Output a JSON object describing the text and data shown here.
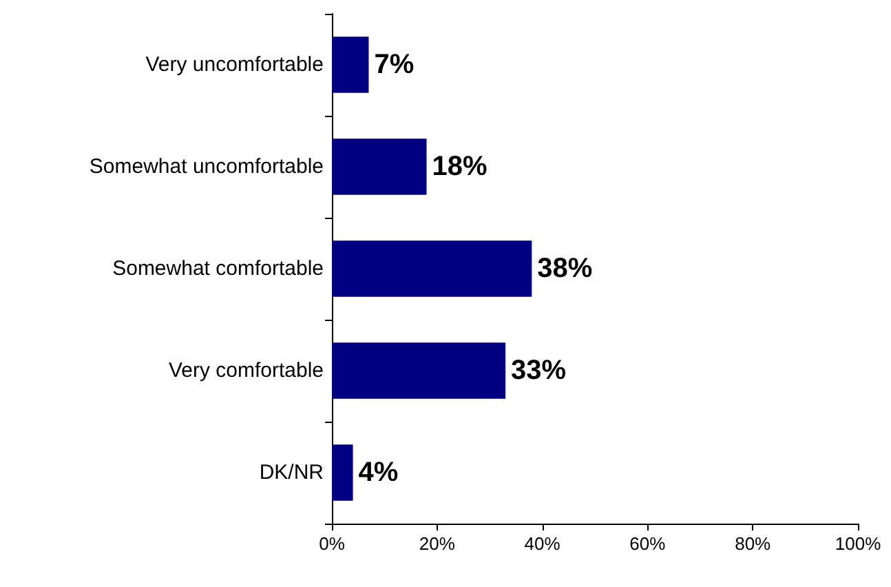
{
  "chart_data": {
    "type": "bar",
    "orientation": "horizontal",
    "categories": [
      "Very uncomfortable",
      "Somewhat uncomfortable",
      "Somewhat comfortable",
      "Very comfortable",
      "DK/NR"
    ],
    "values": [
      7,
      18,
      38,
      33,
      4
    ],
    "value_labels": [
      "7%",
      "18%",
      "38%",
      "33%",
      "4%"
    ],
    "color": "#000080",
    "xlim": [
      0,
      100
    ],
    "xticks": [
      {
        "value": 0,
        "label": "0%"
      },
      {
        "value": 20,
        "label": "20%"
      },
      {
        "value": 40,
        "label": "40%"
      },
      {
        "value": 60,
        "label": "60%"
      },
      {
        "value": 80,
        "label": "80%"
      },
      {
        "value": 100,
        "label": "100%"
      }
    ],
    "grid": false
  }
}
